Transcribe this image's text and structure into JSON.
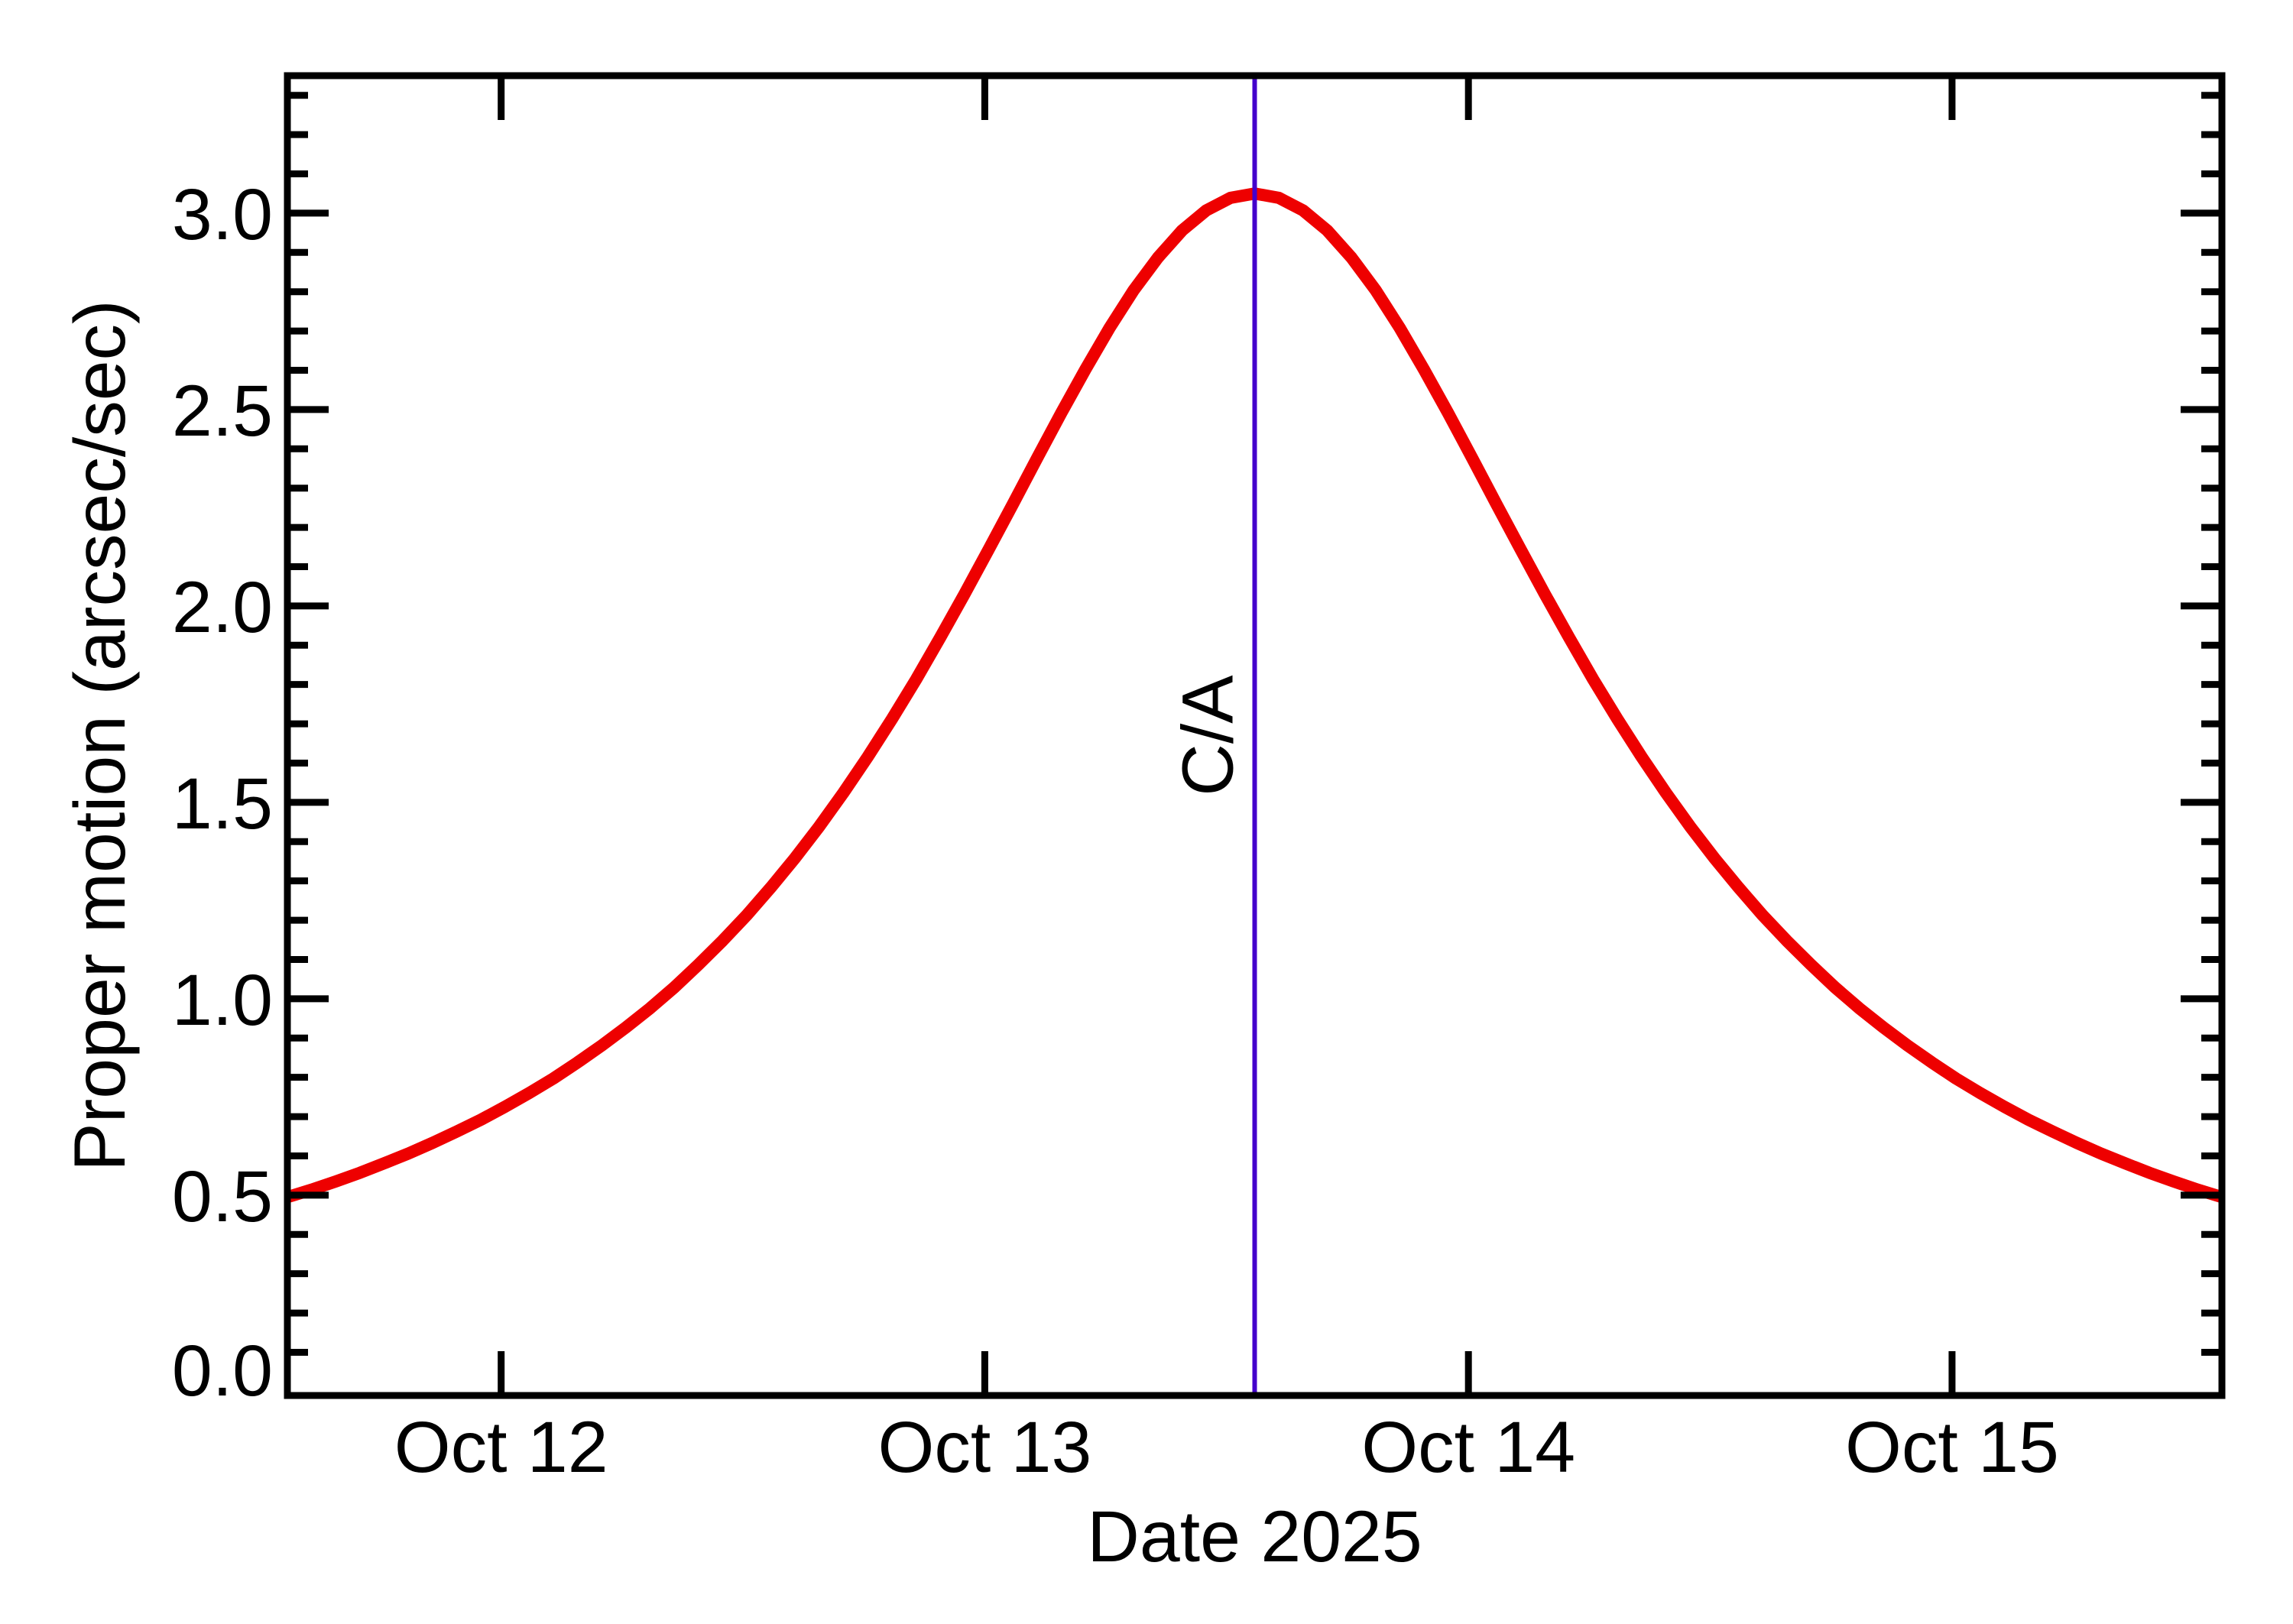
{
  "figure": {
    "background": "#ffffff",
    "axis_color": "#000000",
    "text_color": "#000000"
  },
  "chart_data": {
    "type": "line",
    "title": "",
    "xlabel": "Date 2025",
    "ylabel": "Proper motion (arcsec/sec)",
    "x_axis": {
      "unit": "days relative to closest approach",
      "min": -2.0,
      "max": 2.0,
      "ticks": [
        {
          "label": "Oct 12",
          "t": -1.558
        },
        {
          "label": "Oct 13",
          "t": -0.558
        },
        {
          "label": "Oct 14",
          "t": 0.442
        },
        {
          "label": "Oct 15",
          "t": 1.442
        }
      ]
    },
    "y_axis": {
      "min": -0.01,
      "max": 3.35,
      "major_ticks": [
        {
          "label": "0.0",
          "v": 0.0,
          "dy": -29
        },
        {
          "label": "0.5",
          "v": 0.5,
          "dy": 0
        },
        {
          "label": "1.0",
          "v": 1.0,
          "dy": 0
        },
        {
          "label": "1.5",
          "v": 1.5,
          "dy": 0
        },
        {
          "label": "2.0",
          "v": 2.0,
          "dy": 0
        },
        {
          "label": "2.5",
          "v": 2.5,
          "dy": 0
        },
        {
          "label": "3.0",
          "v": 3.0,
          "dy": 0
        }
      ],
      "minor_ticks": [
        0.1,
        0.2,
        0.3,
        0.4,
        0.6,
        0.7,
        0.8,
        0.9,
        1.1,
        1.2,
        1.3,
        1.4,
        1.6,
        1.7,
        1.8,
        1.9,
        2.1,
        2.2,
        2.3,
        2.4,
        2.6,
        2.7,
        2.8,
        2.9,
        3.1,
        3.2,
        3.3
      ]
    },
    "grid": false,
    "legend": "none",
    "annotation": {
      "label": "C/A",
      "t": 0,
      "color": "#4400CC",
      "meaning": "closest approach vertical marker"
    },
    "series": [
      {
        "name": "proper-motion",
        "color": "#EE0000",
        "peak_value": 3.05,
        "points": [
          [
            -2.0,
            0.495
          ],
          [
            -1.95,
            0.514
          ],
          [
            -1.9,
            0.535
          ],
          [
            -1.85,
            0.557
          ],
          [
            -1.8,
            0.581
          ],
          [
            -1.75,
            0.606
          ],
          [
            -1.7,
            0.633
          ],
          [
            -1.65,
            0.662
          ],
          [
            -1.6,
            0.692
          ],
          [
            -1.55,
            0.725
          ],
          [
            -1.5,
            0.76
          ],
          [
            -1.45,
            0.797
          ],
          [
            -1.4,
            0.838
          ],
          [
            -1.35,
            0.881
          ],
          [
            -1.3,
            0.927
          ],
          [
            -1.25,
            0.976
          ],
          [
            -1.2,
            1.029
          ],
          [
            -1.15,
            1.087
          ],
          [
            -1.1,
            1.148
          ],
          [
            -1.05,
            1.213
          ],
          [
            -1.0,
            1.284
          ],
          [
            -0.95,
            1.359
          ],
          [
            -0.9,
            1.439
          ],
          [
            -0.85,
            1.525
          ],
          [
            -0.8,
            1.616
          ],
          [
            -0.75,
            1.712
          ],
          [
            -0.7,
            1.813
          ],
          [
            -0.65,
            1.92
          ],
          [
            -0.6,
            2.03
          ],
          [
            -0.55,
            2.144
          ],
          [
            -0.5,
            2.259
          ],
          [
            -0.45,
            2.376
          ],
          [
            -0.4,
            2.491
          ],
          [
            -0.35,
            2.602
          ],
          [
            -0.3,
            2.708
          ],
          [
            -0.25,
            2.804
          ],
          [
            -0.2,
            2.887
          ],
          [
            -0.15,
            2.956
          ],
          [
            -0.1,
            3.007
          ],
          [
            -0.05,
            3.039
          ],
          [
            0.0,
            3.05
          ],
          [
            0.05,
            3.039
          ],
          [
            0.1,
            3.007
          ],
          [
            0.15,
            2.956
          ],
          [
            0.2,
            2.887
          ],
          [
            0.25,
            2.804
          ],
          [
            0.3,
            2.708
          ],
          [
            0.35,
            2.602
          ],
          [
            0.4,
            2.491
          ],
          [
            0.45,
            2.376
          ],
          [
            0.5,
            2.259
          ],
          [
            0.55,
            2.144
          ],
          [
            0.6,
            2.03
          ],
          [
            0.65,
            1.92
          ],
          [
            0.7,
            1.813
          ],
          [
            0.75,
            1.712
          ],
          [
            0.8,
            1.616
          ],
          [
            0.85,
            1.525
          ],
          [
            0.9,
            1.439
          ],
          [
            0.95,
            1.359
          ],
          [
            1.0,
            1.284
          ],
          [
            1.05,
            1.213
          ],
          [
            1.1,
            1.148
          ],
          [
            1.15,
            1.087
          ],
          [
            1.2,
            1.029
          ],
          [
            1.25,
            0.976
          ],
          [
            1.3,
            0.927
          ],
          [
            1.35,
            0.881
          ],
          [
            1.4,
            0.838
          ],
          [
            1.45,
            0.797
          ],
          [
            1.5,
            0.76
          ],
          [
            1.55,
            0.725
          ],
          [
            1.6,
            0.692
          ],
          [
            1.65,
            0.662
          ],
          [
            1.7,
            0.633
          ],
          [
            1.75,
            0.606
          ],
          [
            1.8,
            0.581
          ],
          [
            1.85,
            0.557
          ],
          [
            1.9,
            0.535
          ],
          [
            1.95,
            0.514
          ],
          [
            2.0,
            0.495
          ]
        ]
      }
    ]
  }
}
